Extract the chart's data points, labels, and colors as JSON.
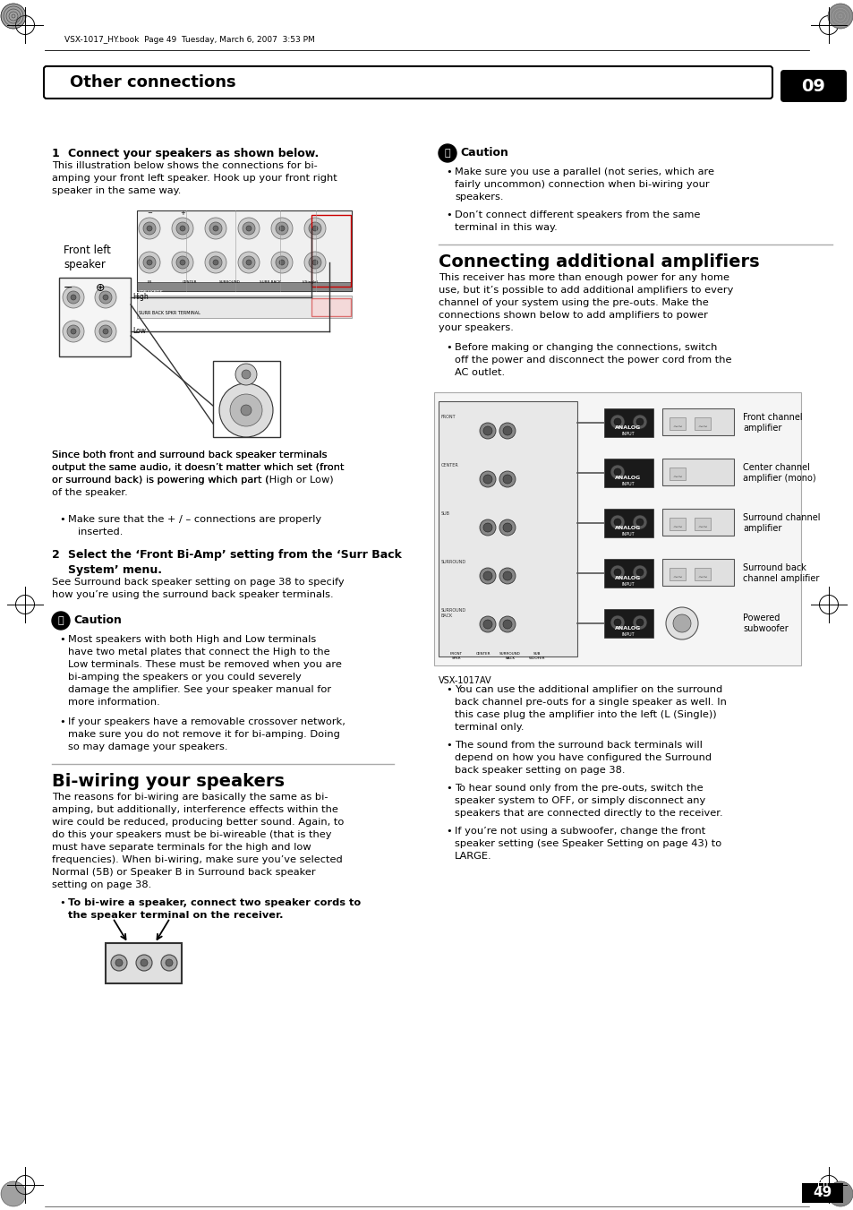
{
  "page_header_text": "VSX-1017_HY.book  Page 49  Tuesday, March 6, 2007  3:53 PM",
  "section_title": "Other connections",
  "section_number": "09",
  "page_number": "49",
  "page_number_sub": "En",
  "step1_heading": "1    Connect your speakers as shown below.",
  "step1_body": "This illustration below shows the connections for bi-\namping your front left speaker. Hook up your front right\nspeaker in the same way.",
  "front_left_label": "Front left\nspeaker",
  "step1_body2": "Since both front and surround back speaker terminals\noutput the same audio, it doesn’t matter which set (front\nor surround back) is powering which part (High or Low)\nof the speaker.",
  "step1_bullet1": "Make sure that the + / – connections are properly\n   inserted.",
  "step2_heading": "2    Select the ‘Front Bi-Amp’ setting from the ‘Surr Back\nSystem’ menu.",
  "step2_body": "See Surround back speaker setting on page 38 to specify\nhow you’re using the surround back speaker terminals.",
  "caution1_title": "Caution",
  "caution1_b1": "Most speakers with both High and Low terminals\nhave two metal plates that connect the High to the\nLow terminals. These must be removed when you are\nbi-amping the speakers or you could severely\ndamage the amplifier. See your speaker manual for\nmore information.",
  "caution1_b2": "If your speakers have a removable crossover network,\nmake sure you do not remove it for bi-amping. Doing\nso may damage your speakers.",
  "biwiring_title": "Bi-wiring your speakers",
  "biwiring_body": "The reasons for bi-wiring are basically the same as bi-\namping, but additionally, interference effects within the\nwire could be reduced, producing better sound. Again, to\ndo this your speakers must be bi-wireable (that is they\nmust have separate terminals for the high and low\nfrequencies). When bi-wiring, make sure you’ve selected\nNormal (5B) or Speaker B in Surround back speaker\nsetting on page 38.",
  "biwiring_bullet": "To bi-wire a speaker, connect two speaker cords to\nthe speaker terminal on the receiver.",
  "caution2_title": "Caution",
  "caution2_b1": "Make sure you use a parallel (not series, which are\nfairly uncommon) connection when bi-wiring your\nspeakers.",
  "caution2_b2": "Don’t connect different speakers from the same\nterminal in this way.",
  "connecting_title": "Connecting additional amplifiers",
  "connecting_body": "This receiver has more than enough power for any home\nuse, but it’s possible to add additional amplifiers to every\nchannel of your system using the pre-outs. Make the\nconnections shown below to add amplifiers to power\nyour speakers.",
  "connecting_bullet": "Before making or changing the connections, switch\noff the power and disconnect the power cord from the\nAC outlet.",
  "amp_labels": [
    "Front channel\namplifier",
    "Center channel\namplifier (mono)",
    "Surround channel\namplifier",
    "Surround back\nchannel amplifier",
    "Powered\nsubwoofer"
  ],
  "receiver_label": "VSX-1017AV",
  "cb1": "You can use the additional amplifier on the surround\nback channel pre-outs for a single speaker as well. In\nthis case plug the amplifier into the left (L (Single))\nterminal only.",
  "cb2": "The sound from the surround back terminals will\ndepend on how you have configured the Surround\nback speaker setting on page 38.",
  "cb3": "To hear sound only from the pre-outs, switch the\nspeaker system to OFF, or simply disconnect any\nspeakers that are connected directly to the receiver.",
  "cb4": "If you’re not using a subwoofer, change the front\nspeaker setting (see Speaker Setting on page 43) to\nLARGE."
}
